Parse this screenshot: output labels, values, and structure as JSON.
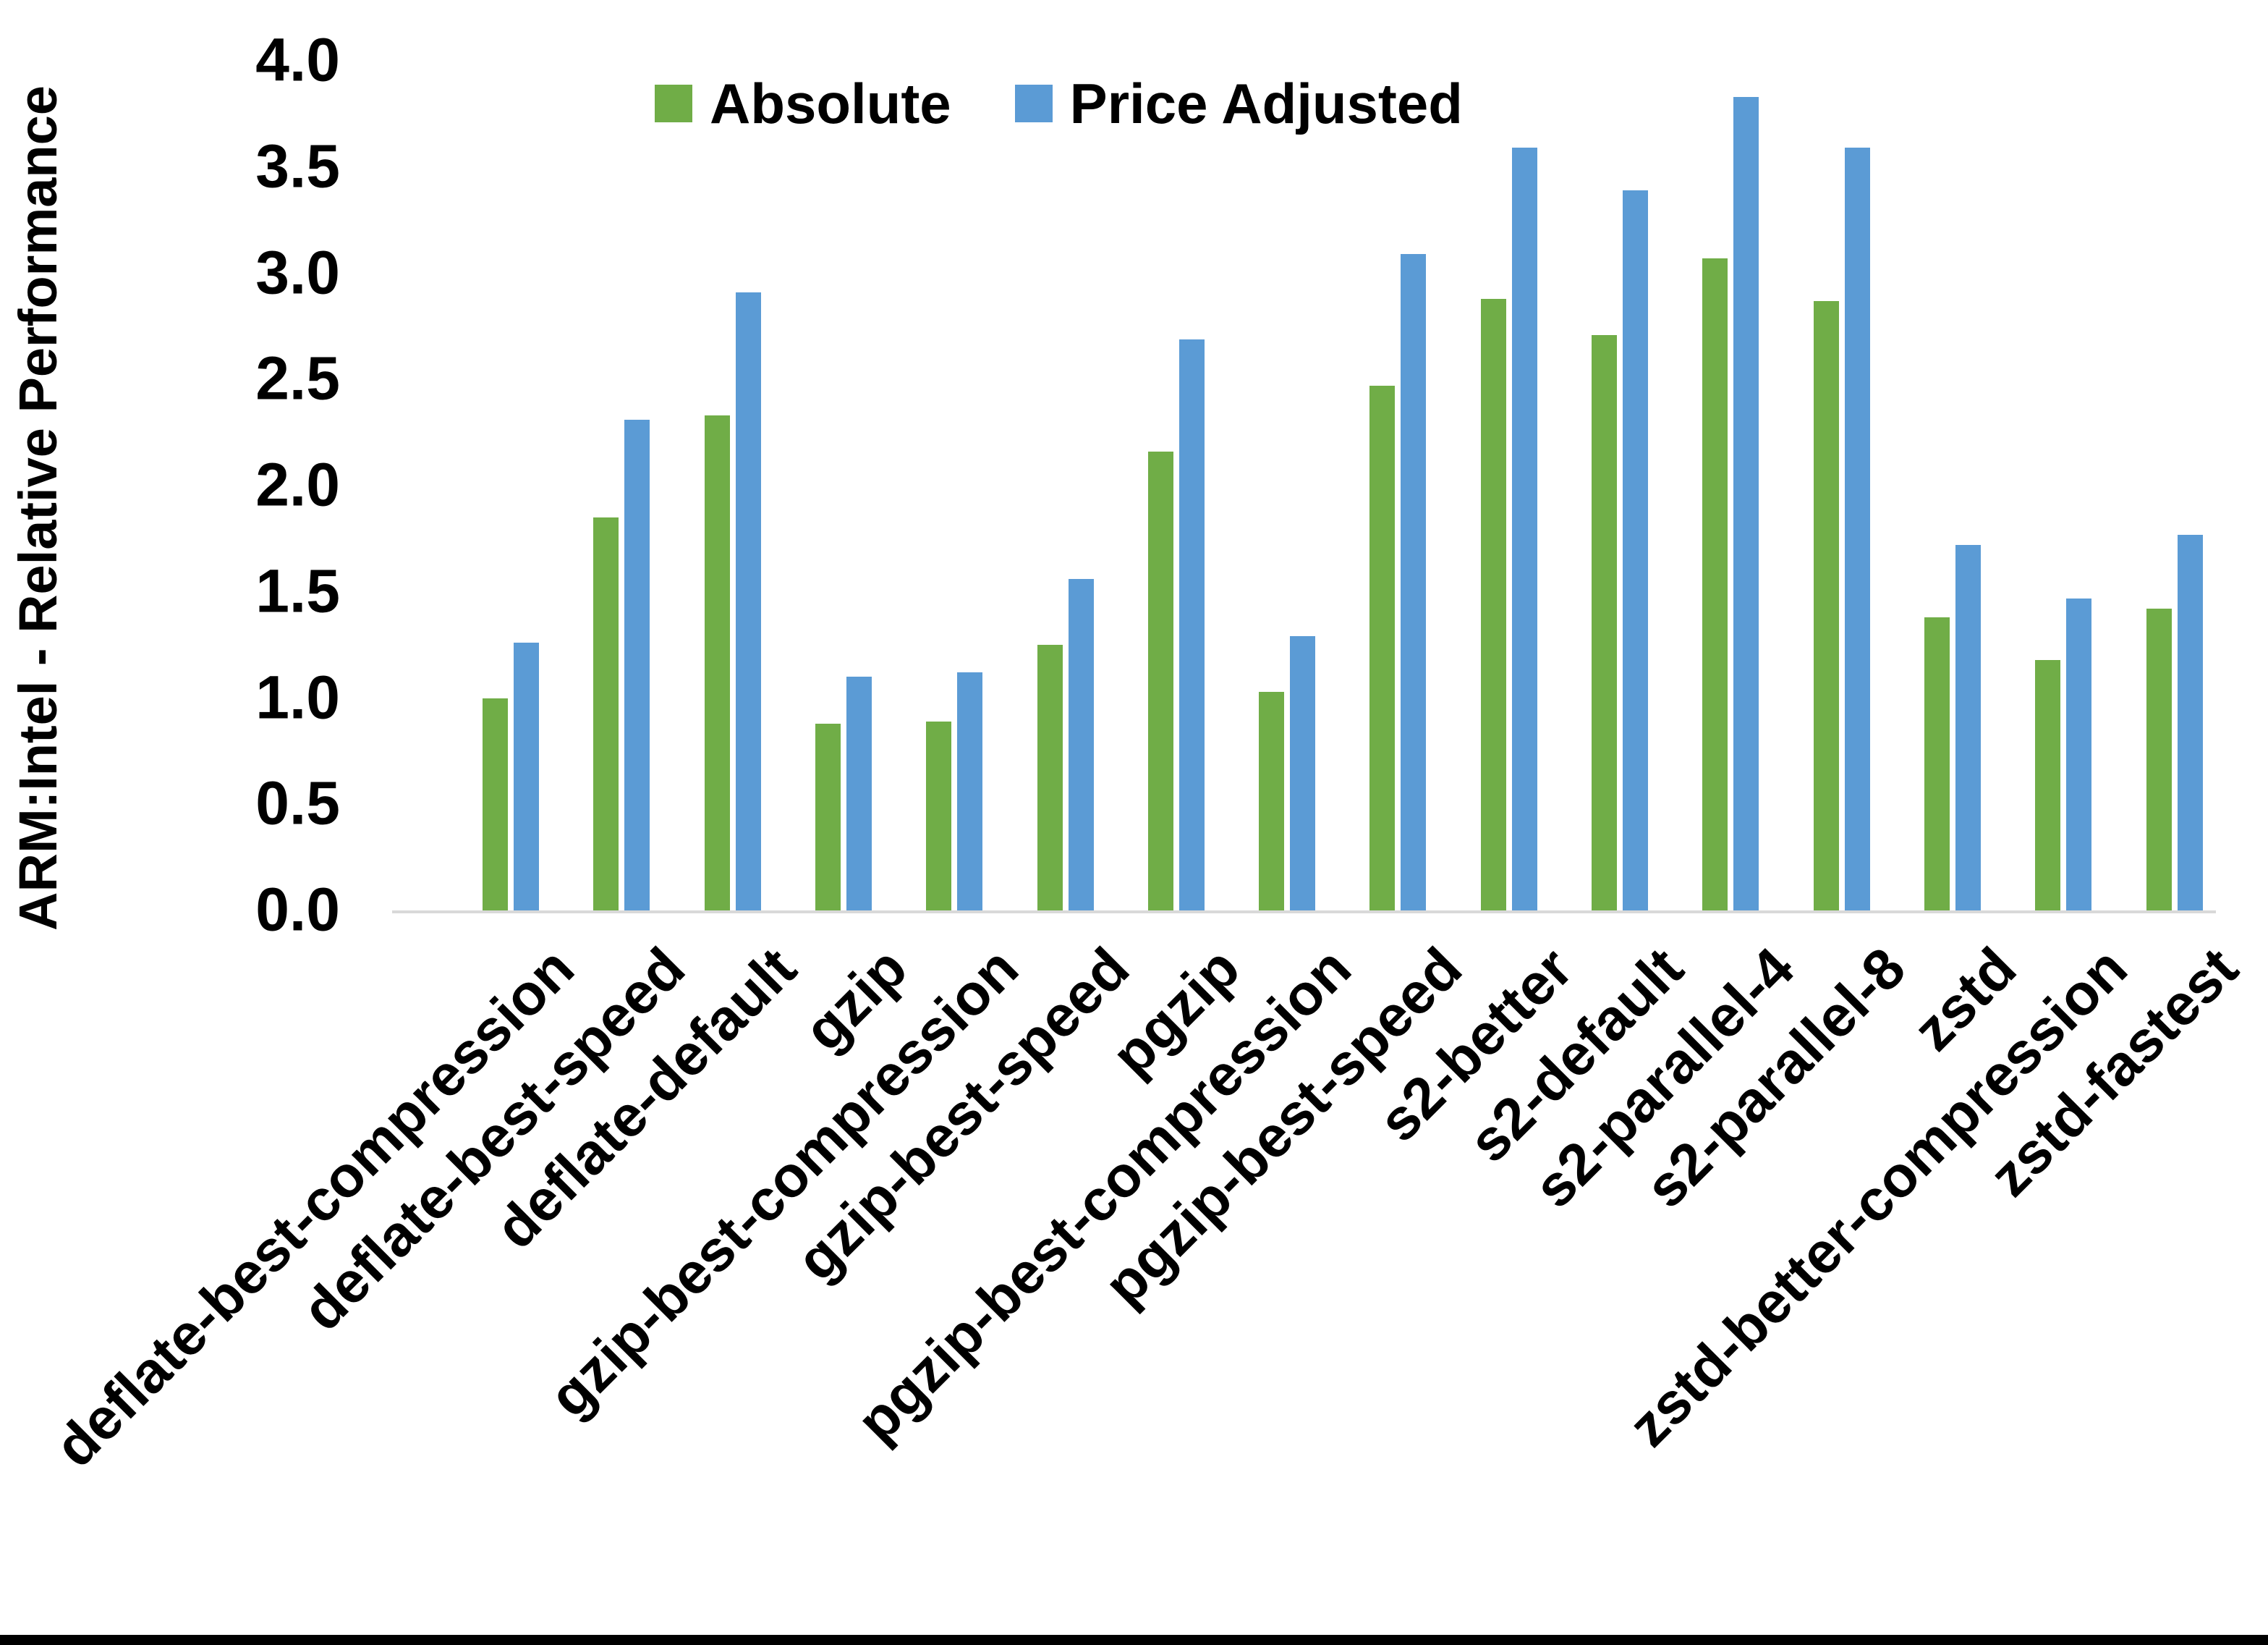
{
  "chart_data": {
    "type": "bar",
    "title": "",
    "xlabel": "",
    "ylabel": "ARM:Intel - Relative Performance",
    "ylim": [
      0.0,
      4.0
    ],
    "ytick_step": 0.5,
    "yticks": [
      "4.0",
      "3.5",
      "3.0",
      "2.5",
      "2.0",
      "1.5",
      "1.0",
      "0.5",
      "0.0"
    ],
    "grid": false,
    "legend_position": "top-center",
    "categories": [
      "deflate-best-compression",
      "deflate-best-speed",
      "deflate-default",
      "gzip",
      "gzip-best-compression",
      "gzip-best-speed",
      "pgzip",
      "pgzip-best-compression",
      "pgzip-best-speed",
      "s2-better",
      "s2-default",
      "s2-parallel-4",
      "s2-parallel-8",
      "zstd",
      "zstd-better-compression",
      "zstd-fastest"
    ],
    "series": [
      {
        "name": "Absolute",
        "color": "#70AD47",
        "values": [
          1.0,
          1.85,
          2.33,
          0.88,
          0.89,
          1.25,
          2.16,
          1.03,
          2.47,
          2.88,
          2.71,
          3.07,
          2.87,
          1.38,
          1.18,
          1.42
        ]
      },
      {
        "name": "Price Adjusted",
        "color": "#5B9BD5",
        "values": [
          1.26,
          2.31,
          2.91,
          1.1,
          1.12,
          1.56,
          2.69,
          1.29,
          3.09,
          3.59,
          3.39,
          3.83,
          3.59,
          1.72,
          1.47,
          1.77
        ]
      }
    ]
  },
  "colors": {
    "axis_line": "#D9D9D9",
    "text": "#000000",
    "background": "#FFFFFF",
    "bottom_border": "#000000"
  }
}
